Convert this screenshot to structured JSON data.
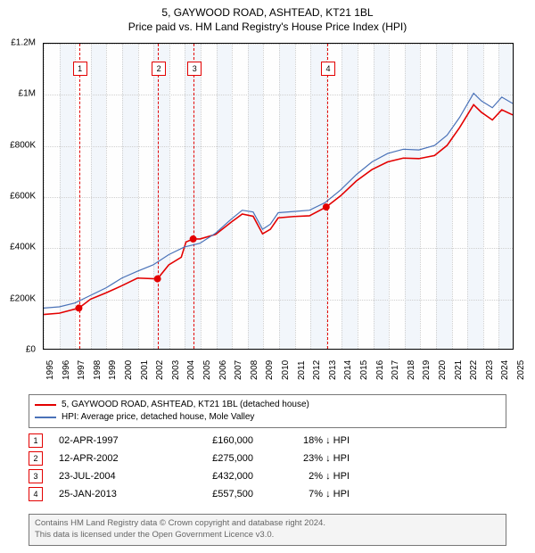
{
  "title": {
    "line1": "5, GAYWOOD ROAD, ASHTEAD, KT21 1BL",
    "line2": "Price paid vs. HM Land Registry's House Price Index (HPI)"
  },
  "chart": {
    "type": "line",
    "background_color": "#ffffff",
    "band_color": "#f2f6fb",
    "grid_color": "#cfcfcf",
    "border_color": "#000000",
    "x": {
      "min": 1995,
      "max": 2025,
      "tick_step": 1,
      "ticks": [
        "1995",
        "1996",
        "1997",
        "1998",
        "1999",
        "2000",
        "2001",
        "2002",
        "2003",
        "2004",
        "2005",
        "2006",
        "2007",
        "2008",
        "2009",
        "2010",
        "2011",
        "2012",
        "2013",
        "2014",
        "2015",
        "2016",
        "2017",
        "2018",
        "2019",
        "2020",
        "2021",
        "2022",
        "2023",
        "2024",
        "2025"
      ]
    },
    "y": {
      "min": 0,
      "max": 1200000,
      "tick_step": 200000,
      "ticks": [
        "£0",
        "£200K",
        "£400K",
        "£600K",
        "£800K",
        "£1M",
        "£1.2M"
      ]
    },
    "label_fontsize": 10,
    "series": [
      {
        "name": "red",
        "color": "#e30000",
        "width": 1.6,
        "label": "5, GAYWOOD ROAD, ASHTEAD, KT21 1BL (detached house)",
        "points": [
          [
            1995.0,
            135000
          ],
          [
            1996.0,
            140000
          ],
          [
            1997.25,
            160000
          ],
          [
            1998.0,
            195000
          ],
          [
            1999.0,
            220000
          ],
          [
            2000.0,
            248000
          ],
          [
            2001.0,
            278000
          ],
          [
            2002.28,
            275000
          ],
          [
            2003.0,
            330000
          ],
          [
            2003.8,
            360000
          ],
          [
            2004.1,
            420000
          ],
          [
            2004.56,
            432000
          ],
          [
            2005.0,
            432000
          ],
          [
            2006.0,
            450000
          ],
          [
            2007.0,
            498000
          ],
          [
            2007.7,
            530000
          ],
          [
            2008.4,
            521000
          ],
          [
            2009.0,
            452000
          ],
          [
            2009.5,
            470000
          ],
          [
            2010.0,
            515000
          ],
          [
            2011.0,
            520000
          ],
          [
            2012.0,
            523000
          ],
          [
            2013.07,
            557500
          ],
          [
            2014.0,
            602000
          ],
          [
            2015.0,
            660000
          ],
          [
            2016.0,
            705000
          ],
          [
            2017.0,
            735000
          ],
          [
            2018.0,
            750000
          ],
          [
            2019.0,
            748000
          ],
          [
            2020.0,
            760000
          ],
          [
            2020.8,
            800000
          ],
          [
            2021.6,
            870000
          ],
          [
            2022.5,
            960000
          ],
          [
            2023.0,
            930000
          ],
          [
            2023.7,
            900000
          ],
          [
            2024.3,
            940000
          ],
          [
            2025.0,
            920000
          ]
        ]
      },
      {
        "name": "blue",
        "color": "#4a72b8",
        "width": 1.2,
        "label": "HPI: Average price, detached house, Mole Valley",
        "points": [
          [
            1995.0,
            160000
          ],
          [
            1996.0,
            165000
          ],
          [
            1997.0,
            180000
          ],
          [
            1998.0,
            210000
          ],
          [
            1999.0,
            240000
          ],
          [
            2000.0,
            278000
          ],
          [
            2001.0,
            305000
          ],
          [
            2002.0,
            330000
          ],
          [
            2003.0,
            370000
          ],
          [
            2004.0,
            400000
          ],
          [
            2005.0,
            415000
          ],
          [
            2006.0,
            455000
          ],
          [
            2007.0,
            510000
          ],
          [
            2007.7,
            545000
          ],
          [
            2008.4,
            538000
          ],
          [
            2009.0,
            470000
          ],
          [
            2009.5,
            490000
          ],
          [
            2010.0,
            535000
          ],
          [
            2011.0,
            540000
          ],
          [
            2012.0,
            545000
          ],
          [
            2013.0,
            575000
          ],
          [
            2014.0,
            625000
          ],
          [
            2015.0,
            685000
          ],
          [
            2016.0,
            735000
          ],
          [
            2017.0,
            768000
          ],
          [
            2018.0,
            785000
          ],
          [
            2019.0,
            782000
          ],
          [
            2020.0,
            800000
          ],
          [
            2020.8,
            840000
          ],
          [
            2021.6,
            910000
          ],
          [
            2022.5,
            1005000
          ],
          [
            2023.0,
            975000
          ],
          [
            2023.7,
            948000
          ],
          [
            2024.3,
            990000
          ],
          [
            2025.0,
            965000
          ]
        ]
      }
    ],
    "markers": [
      {
        "x": 1997.25,
        "y": 160000
      },
      {
        "x": 2002.28,
        "y": 275000
      },
      {
        "x": 2004.56,
        "y": 432000
      },
      {
        "x": 2013.07,
        "y": 557500
      }
    ],
    "events": [
      {
        "n": "1",
        "x": 1997.25,
        "date": "02-APR-1997",
        "price": "£160,000",
        "delta": "18% ↓ HPI"
      },
      {
        "n": "2",
        "x": 2002.28,
        "date": "12-APR-2002",
        "price": "£275,000",
        "delta": "23% ↓ HPI"
      },
      {
        "n": "3",
        "x": 2004.56,
        "date": "23-JUL-2004",
        "price": "£432,000",
        "delta": "2% ↓ HPI"
      },
      {
        "n": "4",
        "x": 2013.07,
        "date": "25-JAN-2013",
        "price": "£557,500",
        "delta": "7% ↓ HPI"
      }
    ],
    "event_box_color": "#e30000"
  },
  "legend": {
    "row1": "5, GAYWOOD ROAD, ASHTEAD, KT21 1BL (detached house)",
    "row2": "HPI: Average price, detached house, Mole Valley"
  },
  "footer": {
    "line1": "Contains HM Land Registry data © Crown copyright and database right 2024.",
    "line2": "This data is licensed under the Open Government Licence v3.0."
  }
}
